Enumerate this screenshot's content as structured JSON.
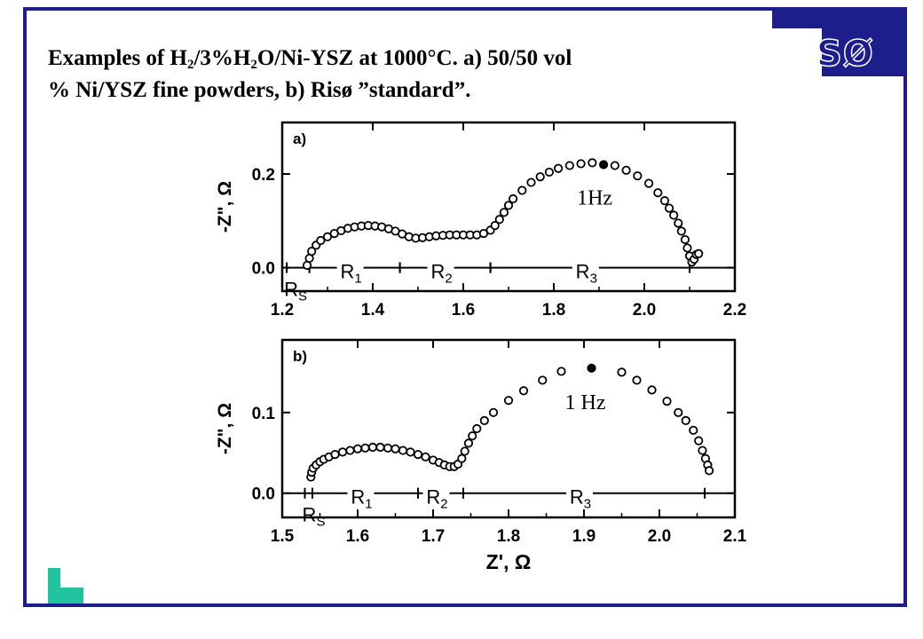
{
  "slide": {
    "title_line1_parts": [
      "Examples of H",
      "2",
      "/3%H",
      "2",
      "O/Ni-YSZ at 1000°C. a) 50/50 vol"
    ],
    "title_line2": "% Ni/YSZ fine powders, b) Risø ”standard”.",
    "logo": "SØ",
    "colors": {
      "frame": "#1d1d8c",
      "accent": "#22c4a0"
    }
  },
  "chart_data": [
    {
      "type": "scatter",
      "panel_label": "a)",
      "ylabel": "-Z\", Ω",
      "xlim": [
        1.2,
        2.2
      ],
      "ylim": [
        -0.05,
        0.31
      ],
      "xticks": [
        "1.2",
        "1.4",
        "1.6",
        "1.8",
        "2.0",
        "2.2"
      ],
      "yticks": [
        "0.0",
        "0.2"
      ],
      "annotation": "1Hz",
      "filled_point": [
        1.91,
        0.22
      ],
      "segments": [
        {
          "label": "R",
          "sub": "S",
          "from": 1.21,
          "to": 1.26
        },
        {
          "label": "R",
          "sub": "1",
          "from": 1.26,
          "to": 1.46
        },
        {
          "label": "R",
          "sub": "2",
          "from": 1.46,
          "to": 1.66
        },
        {
          "label": "R",
          "sub": "3",
          "from": 1.66,
          "to": 2.1
        }
      ],
      "points": [
        [
          1.255,
          0.005
        ],
        [
          1.26,
          0.02
        ],
        [
          1.265,
          0.035
        ],
        [
          1.275,
          0.048
        ],
        [
          1.285,
          0.058
        ],
        [
          1.3,
          0.066
        ],
        [
          1.315,
          0.073
        ],
        [
          1.33,
          0.079
        ],
        [
          1.345,
          0.084
        ],
        [
          1.36,
          0.087
        ],
        [
          1.375,
          0.089
        ],
        [
          1.39,
          0.09
        ],
        [
          1.405,
          0.089
        ],
        [
          1.42,
          0.087
        ],
        [
          1.435,
          0.083
        ],
        [
          1.45,
          0.078
        ],
        [
          1.465,
          0.072
        ],
        [
          1.48,
          0.066
        ],
        [
          1.495,
          0.063
        ],
        [
          1.51,
          0.064
        ],
        [
          1.525,
          0.066
        ],
        [
          1.54,
          0.068
        ],
        [
          1.555,
          0.069
        ],
        [
          1.57,
          0.07
        ],
        [
          1.585,
          0.07
        ],
        [
          1.6,
          0.07
        ],
        [
          1.615,
          0.07
        ],
        [
          1.63,
          0.07
        ],
        [
          1.645,
          0.073
        ],
        [
          1.66,
          0.08
        ],
        [
          1.67,
          0.09
        ],
        [
          1.68,
          0.103
        ],
        [
          1.69,
          0.118
        ],
        [
          1.7,
          0.133
        ],
        [
          1.71,
          0.147
        ],
        [
          1.73,
          0.165
        ],
        [
          1.75,
          0.182
        ],
        [
          1.77,
          0.194
        ],
        [
          1.79,
          0.204
        ],
        [
          1.81,
          0.212
        ],
        [
          1.835,
          0.218
        ],
        [
          1.86,
          0.222
        ],
        [
          1.885,
          0.224
        ],
        [
          1.935,
          0.218
        ],
        [
          1.96,
          0.208
        ],
        [
          1.985,
          0.196
        ],
        [
          2.01,
          0.18
        ],
        [
          2.03,
          0.16
        ],
        [
          2.045,
          0.143
        ],
        [
          2.055,
          0.127
        ],
        [
          2.065,
          0.112
        ],
        [
          2.075,
          0.095
        ],
        [
          2.082,
          0.078
        ],
        [
          2.09,
          0.06
        ],
        [
          2.095,
          0.042
        ],
        [
          2.1,
          0.025
        ],
        [
          2.105,
          0.012
        ],
        [
          2.11,
          0.018
        ],
        [
          2.115,
          0.028
        ],
        [
          2.12,
          0.03
        ]
      ]
    },
    {
      "type": "scatter",
      "panel_label": "b)",
      "xlabel": "Z', Ω",
      "ylabel": "-Z\", Ω",
      "xlim": [
        1.5,
        2.1
      ],
      "ylim": [
        -0.03,
        0.19
      ],
      "xticks": [
        "1.5",
        "1.6",
        "1.7",
        "1.8",
        "1.9",
        "2.0",
        "2.1"
      ],
      "yticks": [
        "0.0",
        "0.1"
      ],
      "annotation": "1 Hz",
      "filled_point": [
        1.91,
        0.155
      ],
      "segments": [
        {
          "label": "R",
          "sub": "S",
          "from": 1.53,
          "to": 1.54
        },
        {
          "label": "R",
          "sub": "1",
          "from": 1.54,
          "to": 1.68
        },
        {
          "label": "R",
          "sub": "2",
          "from": 1.68,
          "to": 1.74
        },
        {
          "label": "R",
          "sub": "3",
          "from": 1.74,
          "to": 2.06
        }
      ],
      "points": [
        [
          1.538,
          0.02
        ],
        [
          1.539,
          0.026
        ],
        [
          1.541,
          0.031
        ],
        [
          1.545,
          0.035
        ],
        [
          1.55,
          0.039
        ],
        [
          1.555,
          0.042
        ],
        [
          1.562,
          0.045
        ],
        [
          1.57,
          0.048
        ],
        [
          1.58,
          0.051
        ],
        [
          1.59,
          0.053
        ],
        [
          1.6,
          0.055
        ],
        [
          1.61,
          0.056
        ],
        [
          1.62,
          0.057
        ],
        [
          1.63,
          0.057
        ],
        [
          1.64,
          0.056
        ],
        [
          1.65,
          0.055
        ],
        [
          1.66,
          0.053
        ],
        [
          1.67,
          0.051
        ],
        [
          1.68,
          0.048
        ],
        [
          1.69,
          0.045
        ],
        [
          1.7,
          0.041
        ],
        [
          1.708,
          0.038
        ],
        [
          1.715,
          0.035
        ],
        [
          1.722,
          0.033
        ],
        [
          1.728,
          0.033
        ],
        [
          1.733,
          0.036
        ],
        [
          1.738,
          0.043
        ],
        [
          1.742,
          0.052
        ],
        [
          1.747,
          0.062
        ],
        [
          1.752,
          0.071
        ],
        [
          1.758,
          0.08
        ],
        [
          1.768,
          0.09
        ],
        [
          1.78,
          0.1
        ],
        [
          1.8,
          0.115
        ],
        [
          1.82,
          0.127
        ],
        [
          1.845,
          0.14
        ],
        [
          1.87,
          0.151
        ],
        [
          1.95,
          0.15
        ],
        [
          1.97,
          0.14
        ],
        [
          1.99,
          0.128
        ],
        [
          2.01,
          0.114
        ],
        [
          2.025,
          0.1
        ],
        [
          2.035,
          0.09
        ],
        [
          2.045,
          0.078
        ],
        [
          2.052,
          0.065
        ],
        [
          2.057,
          0.053
        ],
        [
          2.061,
          0.043
        ],
        [
          2.064,
          0.035
        ],
        [
          2.066,
          0.028
        ]
      ]
    }
  ]
}
